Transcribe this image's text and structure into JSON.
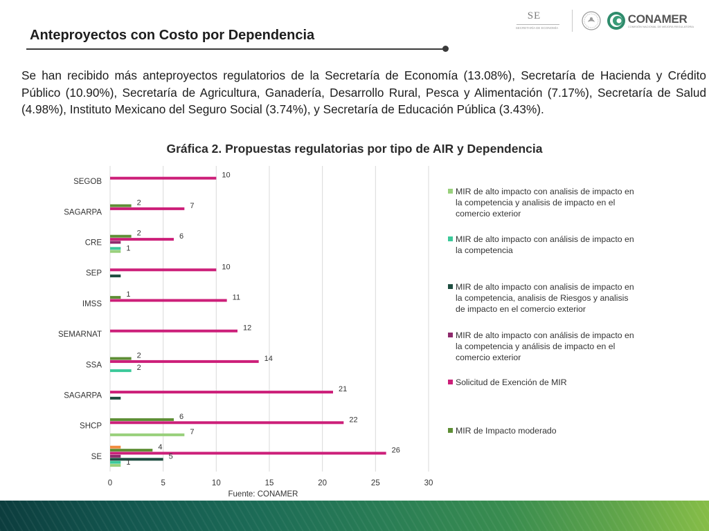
{
  "slide": {
    "title": "Anteproyectos con Costo por Dependencia",
    "body": "Se han recibido más anteproyectos regulatorios de la Secretaría de Economía (13.08%), Secretaría de Hacienda y Crédito Público (10.90%), Secretaría de Agricultura, Ganadería, Desarrollo Rural, Pesca y Alimentación (7.17%), Secretaría de Salud (4.98%), Instituto Mexicano del Seguro Social (3.74%), y Secretaría de Educación Pública (3.43%).",
    "chart_heading": "Gráfica 2. Propuestas regulatorias por tipo de AIR y Dependencia"
  },
  "logos": {
    "se_text": "SE",
    "se_sub": "SECRETARÍA DE ECONOMÍA",
    "conamer_name": "CONAMER",
    "conamer_sub": "COMISIÓN NACIONAL DE MEJORA REGULATORIA",
    "seal_icon": "mexico-seal-icon",
    "conamer_icon": "conamer-logo-icon"
  },
  "chart_data": {
    "type": "bar",
    "orientation": "horizontal",
    "title": "",
    "source": "Fuente: CONAMER",
    "xlim": [
      0,
      30
    ],
    "xticks": [
      0,
      5,
      10,
      15,
      20,
      25,
      30
    ],
    "legend_position": "right",
    "grid": true,
    "categories": [
      "SE",
      "SHCP",
      "SAGARPA",
      "SSA",
      "SEMARNAT",
      "IMSS",
      "SEP",
      "CRE",
      "SAGARPA",
      "SEGOB"
    ],
    "series": [
      {
        "name": "MIR de alto impacto con analisis de impacto en la competencia y analisis de impacto en el comercio exterior",
        "color": "#99d07c",
        "values": [
          1,
          7,
          0,
          0,
          0,
          0,
          0,
          1,
          0,
          0
        ]
      },
      {
        "name": "MIR de alto impacto con análisis de impacto en la competencia",
        "color": "#3cc99a",
        "values": [
          1,
          0,
          0,
          2,
          0,
          0,
          0,
          1,
          0,
          0
        ]
      },
      {
        "name": "MIR de alto impacto con analisis de impacto en la competencia, analisis de Riesgos y analisis de impacto en el comercio exterior",
        "color": "#1e4d40",
        "values": [
          5,
          0,
          1,
          0,
          0,
          0,
          1,
          0,
          0,
          0
        ]
      },
      {
        "name": "MIR de alto impacto con análisis de impacto en la competencia y análisis de impacto en el comercio exterior",
        "color": "#8e2a6c",
        "values": [
          1,
          0,
          0,
          0,
          0,
          0,
          0,
          1,
          0,
          0
        ]
      },
      {
        "name": "Solicitud de Exención de MIR",
        "color": "#cc1f79",
        "values": [
          26,
          22,
          21,
          14,
          12,
          11,
          10,
          6,
          7,
          10
        ]
      },
      {
        "name": "MIR de Impacto moderado",
        "color": "#5e8e35",
        "values": [
          4,
          6,
          0,
          2,
          0,
          1,
          0,
          2,
          2,
          0
        ]
      },
      {
        "name": "",
        "color": "#ef8a3c",
        "values": [
          1,
          0,
          0,
          0,
          0,
          0,
          0,
          0,
          0,
          0
        ]
      }
    ],
    "data_labels": [
      {
        "category_index": 0,
        "series_index": 4,
        "text": "26"
      },
      {
        "category_index": 0,
        "series_index": 2,
        "text": "5"
      },
      {
        "category_index": 0,
        "series_index": 5,
        "text": "4"
      },
      {
        "category_index": 0,
        "series_index": 0,
        "text": "1"
      },
      {
        "category_index": 1,
        "series_index": 4,
        "text": "22"
      },
      {
        "category_index": 1,
        "series_index": 5,
        "text": "6"
      },
      {
        "category_index": 1,
        "series_index": 0,
        "text": "7"
      },
      {
        "category_index": 2,
        "series_index": 4,
        "text": "21"
      },
      {
        "category_index": 3,
        "series_index": 4,
        "text": "14"
      },
      {
        "category_index": 3,
        "series_index": 5,
        "text": "2"
      },
      {
        "category_index": 3,
        "series_index": 1,
        "text": "2"
      },
      {
        "category_index": 4,
        "series_index": 4,
        "text": "12"
      },
      {
        "category_index": 5,
        "series_index": 4,
        "text": "11"
      },
      {
        "category_index": 5,
        "series_index": 5,
        "text": "1"
      },
      {
        "category_index": 6,
        "series_index": 4,
        "text": "10"
      },
      {
        "category_index": 7,
        "series_index": 4,
        "text": "6"
      },
      {
        "category_index": 7,
        "series_index": 5,
        "text": "2"
      },
      {
        "category_index": 7,
        "series_index": 0,
        "text": "1"
      },
      {
        "category_index": 8,
        "series_index": 4,
        "text": "7"
      },
      {
        "category_index": 8,
        "series_index": 5,
        "text": "2"
      },
      {
        "category_index": 9,
        "series_index": 4,
        "text": "10"
      }
    ],
    "legend_series_order": [
      0,
      1,
      2,
      3,
      4,
      5
    ]
  }
}
